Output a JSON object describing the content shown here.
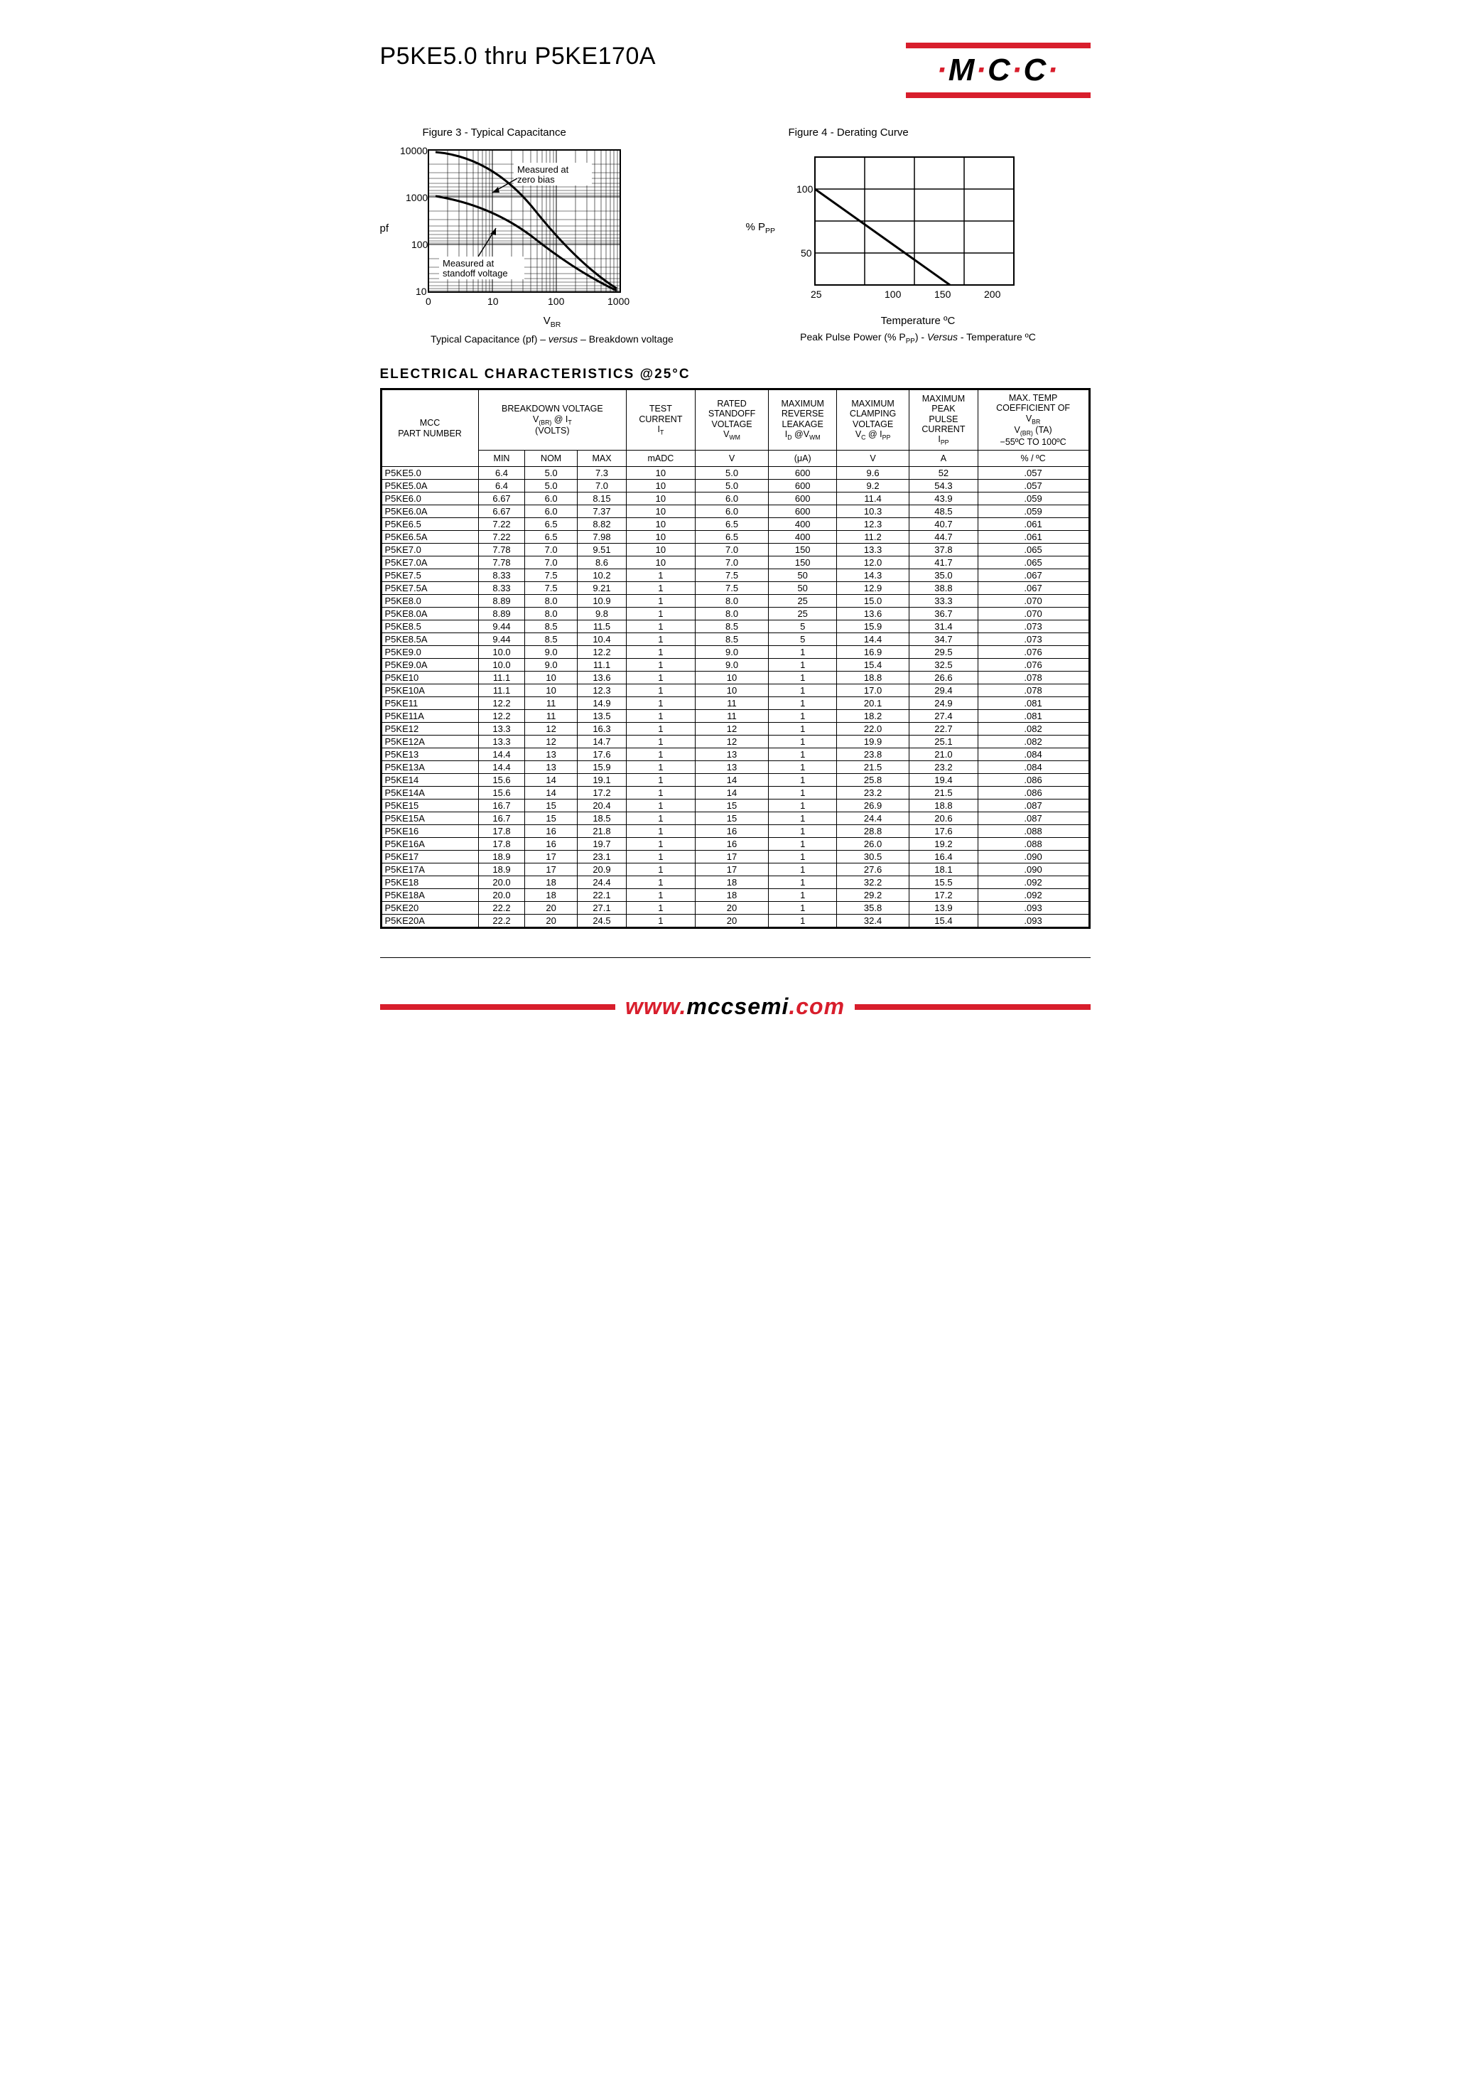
{
  "title": "P5KE5.0 thru P5KE170A",
  "logo": {
    "letters": "M C C"
  },
  "figure3": {
    "title": "Figure 3  -  Typical Capacitance",
    "y_axis_label": "pf",
    "x_axis_label": "VBR",
    "caption_left": "Typical Capacitance (pf) –",
    "caption_mid": "versus",
    "caption_right": "– Breakdown voltage",
    "annotation_top": "Measured at zero bias",
    "annotation_bottom": "Measured at standoff voltage",
    "x_ticks": [
      "0",
      "10",
      "100",
      "1000"
    ],
    "y_ticks": [
      "10",
      "100",
      "1000",
      "10000"
    ],
    "scale": "log-log",
    "line_color": "#000000",
    "grid_color": "#000000",
    "background_color": "#ffffff"
  },
  "figure4": {
    "title": "Figure 4  -  Derating Curve",
    "y_axis_label": "% PPP",
    "x_axis_label": "Temperature ºC",
    "caption_left": "Peak Pulse Power (% PPP)   -  ",
    "caption_mid": "Versus",
    "caption_right": "  -  Temperature ºC",
    "x_ticks": [
      "25",
      "100",
      "150",
      "200"
    ],
    "y_ticks": [
      "50",
      "100"
    ],
    "scale": "linear",
    "line_color": "#000000",
    "grid_color": "#000000",
    "background_color": "#ffffff",
    "derating_points": [
      [
        25,
        100
      ],
      [
        150,
        0
      ]
    ]
  },
  "section_title": "ELECTRICAL CHARACTERISTICS @25°C",
  "table": {
    "headers": {
      "col1": "MCC\nPART NUMBER",
      "col_bv": "BREAKDOWN VOLTAGE\nV(BR) @ IT\n(VOLTS)",
      "bv_min": "MIN",
      "bv_nom": "NOM",
      "bv_max": "MAX",
      "col_it": "TEST\nCURRENT\nIT",
      "it_unit": "mADC",
      "col_vwm": "RATED\nSTANDOFF\nVOLTAGE\nVWM",
      "vwm_unit": "V",
      "col_id": "MAXIMUM\nREVERSE\nLEAKAGE\nID @VWM",
      "id_unit": "(μA)",
      "col_vc": "MAXIMUM\nCLAMPING\nVOLTAGE\nVC @ IPP",
      "vc_unit": "V",
      "col_ipp": "MAXIMUM\nPEAK\nPULSE\nCURRENT\nIPP",
      "ipp_unit": "A",
      "col_tc": "MAX. TEMP\nCOEFFICIENT OF\nVBR\nV(BR) (TA)\n−55ºC TO 100ºC",
      "tc_unit": "% / ºC"
    },
    "rows": [
      [
        "P5KE5.0",
        "6.4",
        "5.0",
        "7.3",
        "10",
        "5.0",
        "600",
        "9.6",
        "52",
        ".057"
      ],
      [
        "P5KE5.0A",
        "6.4",
        "5.0",
        "7.0",
        "10",
        "5.0",
        "600",
        "9.2",
        "54.3",
        ".057"
      ],
      [
        "P5KE6.0",
        "6.67",
        "6.0",
        "8.15",
        "10",
        "6.0",
        "600",
        "11.4",
        "43.9",
        ".059"
      ],
      [
        "P5KE6.0A",
        "6.67",
        "6.0",
        "7.37",
        "10",
        "6.0",
        "600",
        "10.3",
        "48.5",
        ".059"
      ],
      [
        "P5KE6.5",
        "7.22",
        "6.5",
        "8.82",
        "10",
        "6.5",
        "400",
        "12.3",
        "40.7",
        ".061"
      ],
      [
        "P5KE6.5A",
        "7.22",
        "6.5",
        "7.98",
        "10",
        "6.5",
        "400",
        "11.2",
        "44.7",
        ".061"
      ],
      [
        "P5KE7.0",
        "7.78",
        "7.0",
        "9.51",
        "10",
        "7.0",
        "150",
        "13.3",
        "37.8",
        ".065"
      ],
      [
        "P5KE7.0A",
        "7.78",
        "7.0",
        "8.6",
        "10",
        "7.0",
        "150",
        "12.0",
        "41.7",
        ".065"
      ],
      [
        "P5KE7.5",
        "8.33",
        "7.5",
        "10.2",
        "1",
        "7.5",
        "50",
        "14.3",
        "35.0",
        ".067"
      ],
      [
        "P5KE7.5A",
        "8.33",
        "7.5",
        "9.21",
        "1",
        "7.5",
        "50",
        "12.9",
        "38.8",
        ".067"
      ],
      [
        "P5KE8.0",
        "8.89",
        "8.0",
        "10.9",
        "1",
        "8.0",
        "25",
        "15.0",
        "33.3",
        ".070"
      ],
      [
        "P5KE8.0A",
        "8.89",
        "8.0",
        "9.8",
        "1",
        "8.0",
        "25",
        "13.6",
        "36.7",
        ".070"
      ],
      [
        "P5KE8.5",
        "9.44",
        "8.5",
        "11.5",
        "1",
        "8.5",
        "5",
        "15.9",
        "31.4",
        ".073"
      ],
      [
        "P5KE8.5A",
        "9.44",
        "8.5",
        "10.4",
        "1",
        "8.5",
        "5",
        "14.4",
        "34.7",
        ".073"
      ],
      [
        "P5KE9.0",
        "10.0",
        "9.0",
        "12.2",
        "1",
        "9.0",
        "1",
        "16.9",
        "29.5",
        ".076"
      ],
      [
        "P5KE9.0A",
        "10.0",
        "9.0",
        "11.1",
        "1",
        "9.0",
        "1",
        "15.4",
        "32.5",
        ".076"
      ],
      [
        "P5KE10",
        "11.1",
        "10",
        "13.6",
        "1",
        "10",
        "1",
        "18.8",
        "26.6",
        ".078"
      ],
      [
        "P5KE10A",
        "11.1",
        "10",
        "12.3",
        "1",
        "10",
        "1",
        "17.0",
        "29.4",
        ".078"
      ],
      [
        "P5KE11",
        "12.2",
        "11",
        "14.9",
        "1",
        "11",
        "1",
        "20.1",
        "24.9",
        ".081"
      ],
      [
        "P5KE11A",
        "12.2",
        "11",
        "13.5",
        "1",
        "11",
        "1",
        "18.2",
        "27.4",
        ".081"
      ],
      [
        "P5KE12",
        "13.3",
        "12",
        "16.3",
        "1",
        "12",
        "1",
        "22.0",
        "22.7",
        ".082"
      ],
      [
        "P5KE12A",
        "13.3",
        "12",
        "14.7",
        "1",
        "12",
        "1",
        "19.9",
        "25.1",
        ".082"
      ],
      [
        "P5KE13",
        "14.4",
        "13",
        "17.6",
        "1",
        "13",
        "1",
        "23.8",
        "21.0",
        ".084"
      ],
      [
        "P5KE13A",
        "14.4",
        "13",
        "15.9",
        "1",
        "13",
        "1",
        "21.5",
        "23.2",
        ".084"
      ],
      [
        "P5KE14",
        "15.6",
        "14",
        "19.1",
        "1",
        "14",
        "1",
        "25.8",
        "19.4",
        ".086"
      ],
      [
        "P5KE14A",
        "15.6",
        "14",
        "17.2",
        "1",
        "14",
        "1",
        "23.2",
        "21.5",
        ".086"
      ],
      [
        "P5KE15",
        "16.7",
        "15",
        "20.4",
        "1",
        "15",
        "1",
        "26.9",
        "18.8",
        ".087"
      ],
      [
        "P5KE15A",
        "16.7",
        "15",
        "18.5",
        "1",
        "15",
        "1",
        "24.4",
        "20.6",
        ".087"
      ],
      [
        "P5KE16",
        "17.8",
        "16",
        "21.8",
        "1",
        "16",
        "1",
        "28.8",
        "17.6",
        ".088"
      ],
      [
        "P5KE16A",
        "17.8",
        "16",
        "19.7",
        "1",
        "16",
        "1",
        "26.0",
        "19.2",
        ".088"
      ],
      [
        "P5KE17",
        "18.9",
        "17",
        "23.1",
        "1",
        "17",
        "1",
        "30.5",
        "16.4",
        ".090"
      ],
      [
        "P5KE17A",
        "18.9",
        "17",
        "20.9",
        "1",
        "17",
        "1",
        "27.6",
        "18.1",
        ".090"
      ],
      [
        "P5KE18",
        "20.0",
        "18",
        "24.4",
        "1",
        "18",
        "1",
        "32.2",
        "15.5",
        ".092"
      ],
      [
        "P5KE18A",
        "20.0",
        "18",
        "22.1",
        "1",
        "18",
        "1",
        "29.2",
        "17.2",
        ".092"
      ],
      [
        "P5KE20",
        "22.2",
        "20",
        "27.1",
        "1",
        "20",
        "1",
        "35.8",
        "13.9",
        ".093"
      ],
      [
        "P5KE20A",
        "22.2",
        "20",
        "24.5",
        "1",
        "20",
        "1",
        "32.4",
        "15.4",
        ".093"
      ]
    ]
  },
  "footer": {
    "www": "www.",
    "domain": "mccsemi",
    "tld": ".com"
  }
}
